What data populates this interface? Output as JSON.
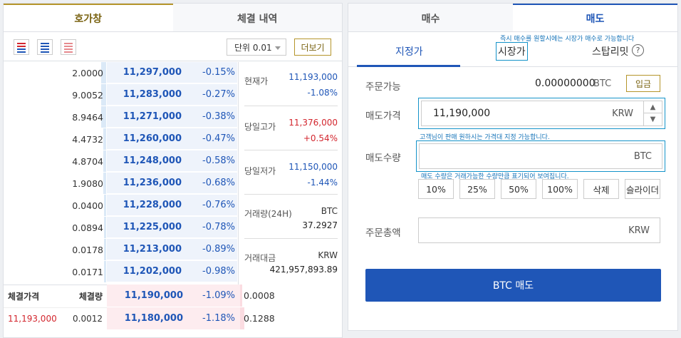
{
  "left_tabs": [
    "호가창",
    "체결 내역"
  ],
  "toolbar": {
    "unit": "단위 0.01",
    "more": "더보기"
  },
  "asks": [
    {
      "qty": "2.0000",
      "price": "11,297,000",
      "change": "-0.15%",
      "fill": 0.05
    },
    {
      "qty": "9.0052",
      "price": "11,283,000",
      "change": "-0.27%",
      "fill": 0.05
    },
    {
      "qty": "8.9464",
      "price": "11,271,000",
      "change": "-0.38%",
      "fill": 0.05
    },
    {
      "qty": "4.4732",
      "price": "11,260,000",
      "change": "-0.47%",
      "fill": 0.03
    },
    {
      "qty": "4.8704",
      "price": "11,248,000",
      "change": "-0.58%",
      "fill": 0.03
    },
    {
      "qty": "1.9080",
      "price": "11,236,000",
      "change": "-0.68%",
      "fill": 0.03
    },
    {
      "qty": "0.0400",
      "price": "11,228,000",
      "change": "-0.76%",
      "fill": 0.02
    },
    {
      "qty": "0.0894",
      "price": "11,225,000",
      "change": "-0.78%",
      "fill": 0.02
    },
    {
      "qty": "0.0178",
      "price": "11,213,000",
      "change": "-0.89%",
      "fill": 0.02
    },
    {
      "qty": "0.0171",
      "price": "11,202,000",
      "change": "-0.98%",
      "fill": 0.02
    }
  ],
  "info": {
    "current": {
      "label": "현재가",
      "value": "11,193,000",
      "change": "-1.08%"
    },
    "high": {
      "label": "당일고가",
      "value": "11,376,000",
      "change": "+0.54%"
    },
    "low": {
      "label": "당일저가",
      "value": "11,150,000",
      "change": "-1.44%"
    },
    "volume": {
      "label": "거래량(24H)",
      "unit": "BTC",
      "value": "37.2927"
    },
    "amount": {
      "label": "거래대금",
      "unit": "KRW",
      "value": "421,957,893.89"
    }
  },
  "trades": {
    "header_price": "체결가격",
    "header_qty": "체결량",
    "rows": [
      {
        "price": "11,193,000",
        "qty": "0.0012"
      }
    ]
  },
  "bids": [
    {
      "price": "11,190,000",
      "change": "-1.09%",
      "qty": "0.0008",
      "fill": 0.02
    },
    {
      "price": "11,180,000",
      "change": "-1.18%",
      "qty": "0.1288",
      "fill": 0.04
    }
  ],
  "right_tabs": [
    "매수",
    "매도"
  ],
  "order_types": {
    "limit": "지정가",
    "market": "시장가",
    "stop": "스탑리밋"
  },
  "hints": {
    "market": "즉시 매수를 원할시에는 시장가 매수로 가능합니다",
    "price": "고객님이 판매 원하시는 가격대 지정 가능합니다.",
    "quantity": "매도 수량은 거래가능한 수량만큼 표기되어 보여집니다."
  },
  "form": {
    "available_label": "주문가능",
    "available_value": "0.00000000",
    "available_unit": "BTC",
    "deposit": "입금",
    "price_label": "매도가격",
    "price_value": "11,190,000",
    "price_unit": "KRW",
    "qty_label": "매도수량",
    "qty_unit": "BTC",
    "pct_buttons": [
      "10%",
      "25%",
      "50%",
      "100%",
      "삭제",
      "슬라이더"
    ],
    "total_label": "주문총액",
    "total_unit": "KRW",
    "submit": "BTC 매도"
  },
  "colors": {
    "ask_blue": "#1f56b7",
    "bid_red": "#d3262e",
    "gold": "#b5952b"
  }
}
